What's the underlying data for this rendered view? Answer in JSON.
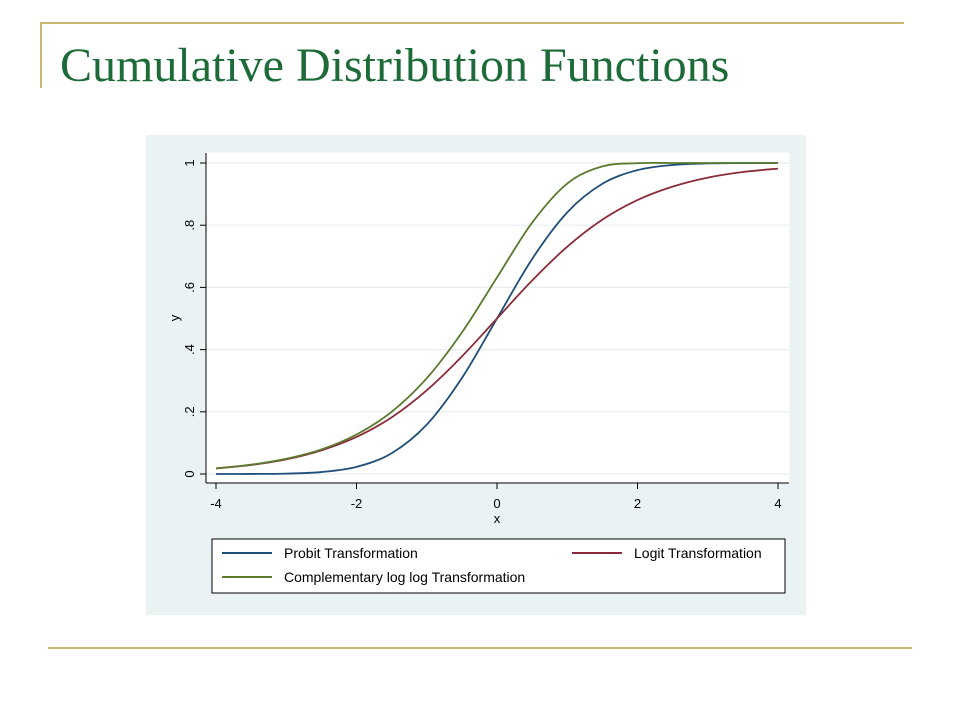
{
  "slide": {
    "title": "Cumulative Distribution Functions",
    "frame_color": "#c9b870",
    "title_color": "#1e6b3a"
  },
  "chart_data": {
    "type": "line",
    "xlabel": "x",
    "ylabel": "y",
    "xlim": [
      -4,
      4
    ],
    "ylim": [
      0,
      1
    ],
    "x_ticks": [
      -4,
      -2,
      0,
      2,
      4
    ],
    "x_tick_labels": [
      "-4",
      "-2",
      "0",
      "2",
      "4"
    ],
    "y_ticks": [
      0,
      0.2,
      0.4,
      0.6,
      0.8,
      1
    ],
    "y_tick_labels": [
      "0",
      ".2",
      ".4",
      ".6",
      ".8",
      "1"
    ],
    "grid": true,
    "legend_placement": "bottom",
    "background_color": "#eaf2f3",
    "x": [
      -4,
      -3.5,
      -3,
      -2.5,
      -2,
      -1.5,
      -1,
      -0.5,
      0,
      0.5,
      1,
      1.5,
      2,
      2.5,
      3,
      3.5,
      4
    ],
    "series": [
      {
        "name": "Probit Transformation",
        "color": "#1f4e79",
        "values": [
          3e-05,
          0.0002,
          0.0013,
          0.0062,
          0.0228,
          0.0668,
          0.1587,
          0.3085,
          0.5,
          0.6915,
          0.8413,
          0.9332,
          0.9772,
          0.9938,
          0.9987,
          0.9998,
          1.0
        ]
      },
      {
        "name": "Logit Transformation",
        "color": "#8b2c3a",
        "values": [
          0.018,
          0.029,
          0.047,
          0.076,
          0.119,
          0.182,
          0.269,
          0.378,
          0.5,
          0.622,
          0.731,
          0.818,
          0.881,
          0.924,
          0.953,
          0.971,
          0.982
        ]
      },
      {
        "name": "Complementary log log Transformation",
        "color": "#5a7a2e",
        "values": [
          0.018,
          0.03,
          0.049,
          0.079,
          0.127,
          0.2,
          0.308,
          0.455,
          0.632,
          0.808,
          0.934,
          0.989,
          0.9994,
          1.0,
          1.0,
          1.0,
          1.0
        ]
      }
    ]
  }
}
